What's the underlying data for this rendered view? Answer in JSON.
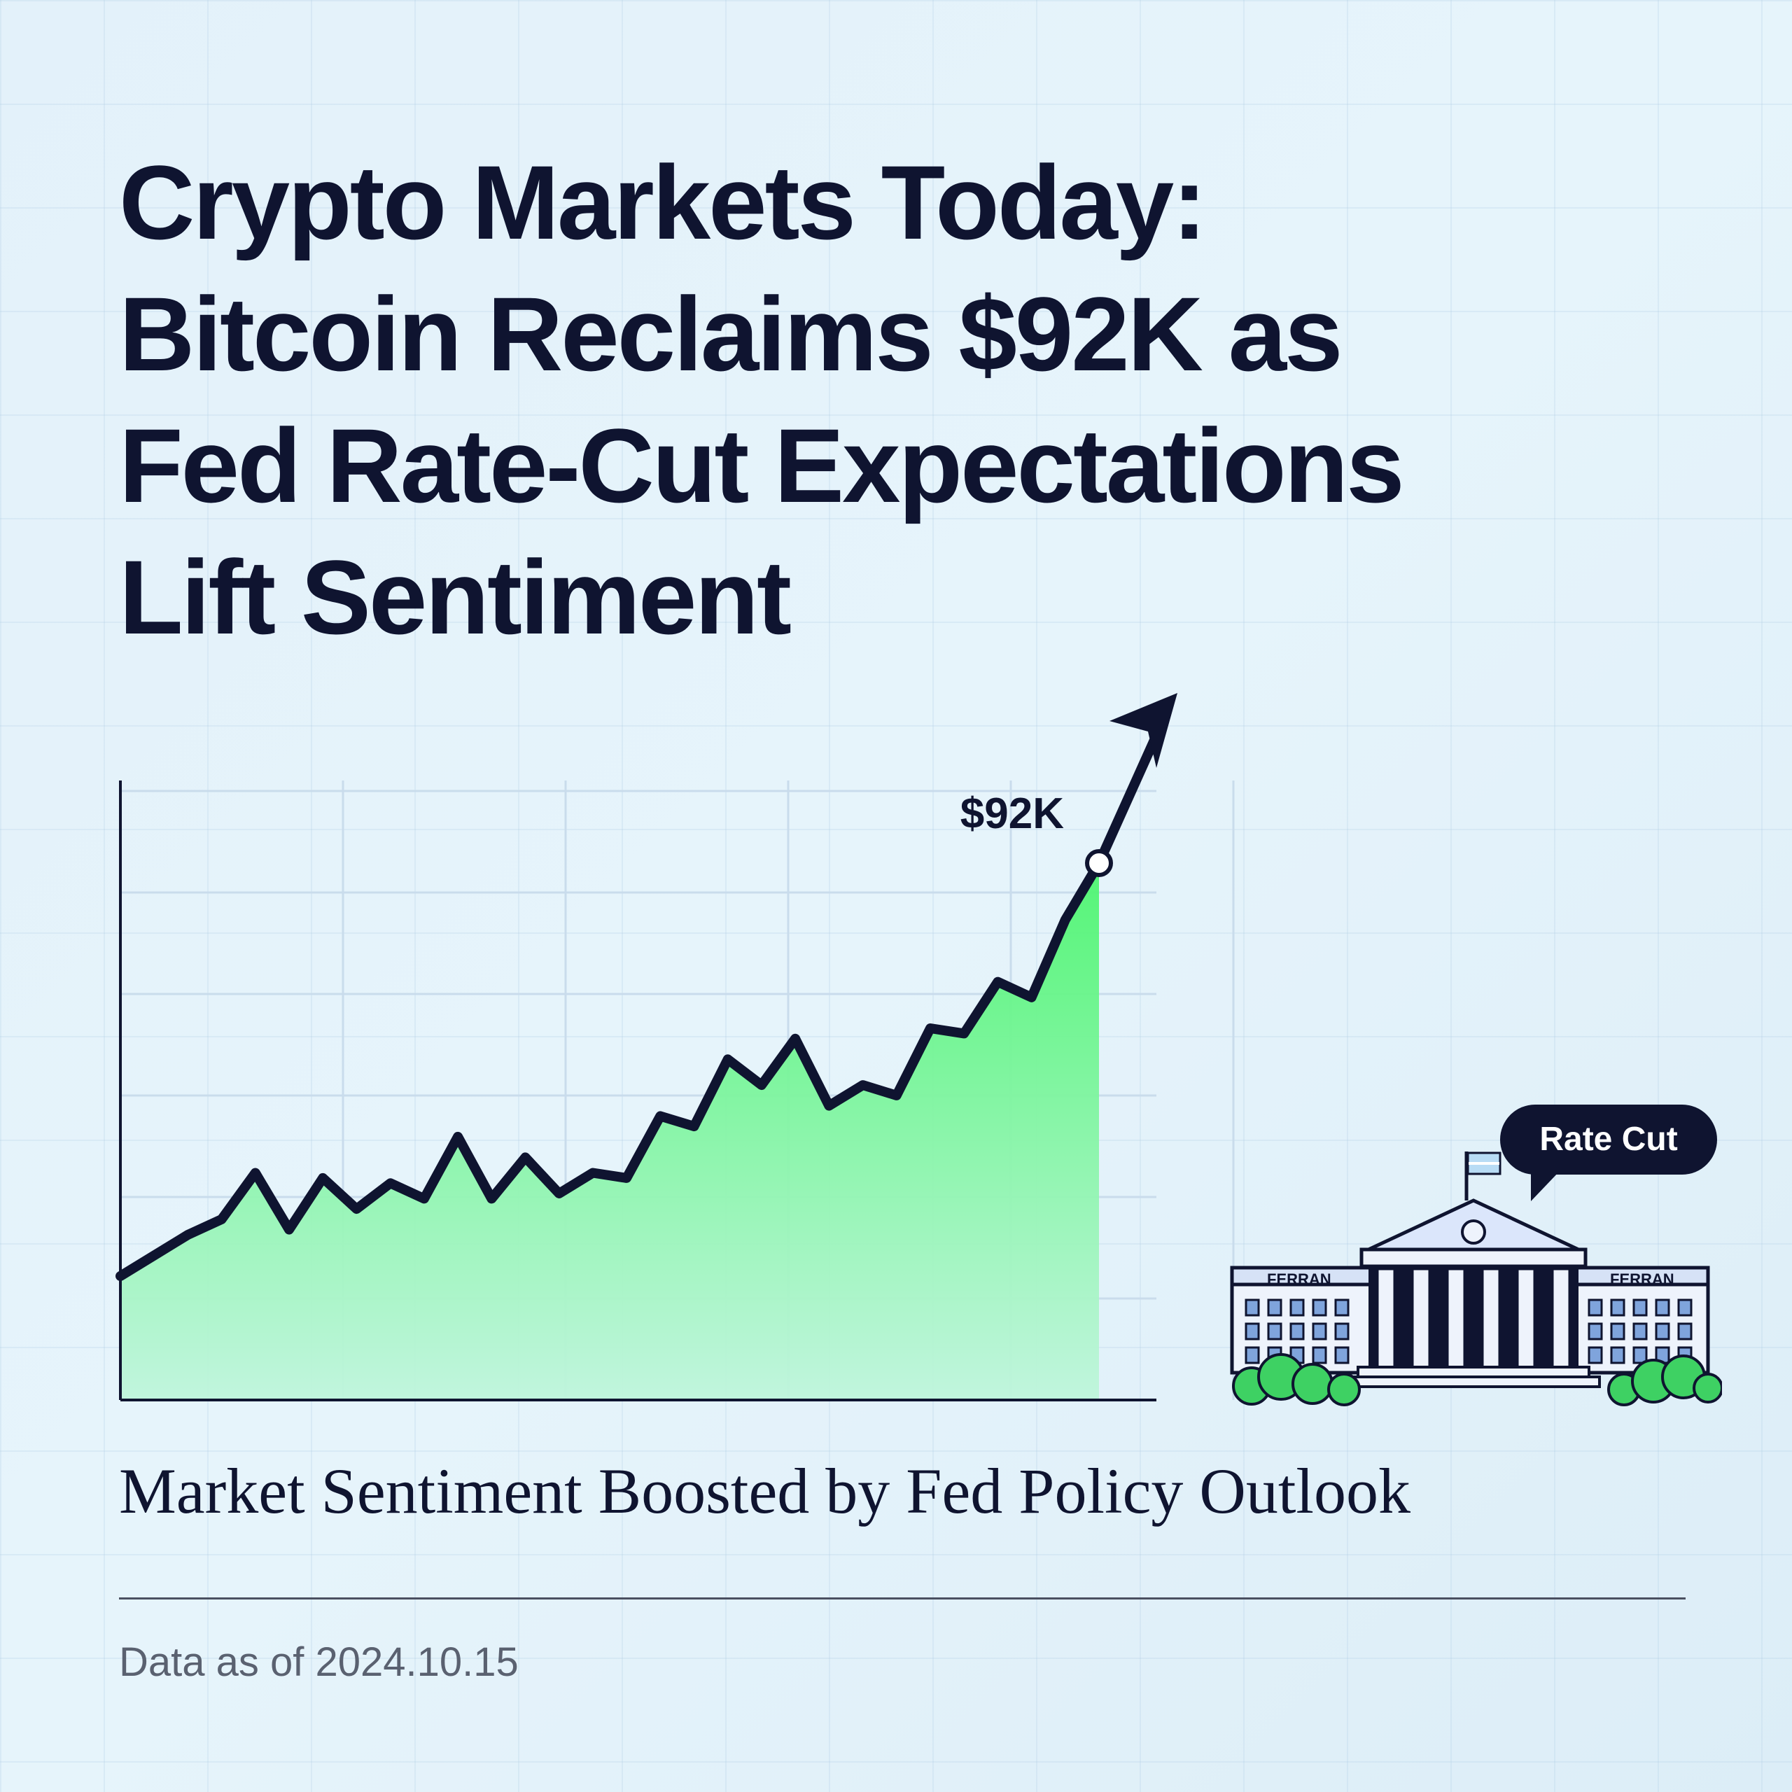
{
  "headline": {
    "lines": [
      "Crypto Markets Today:",
      "Bitcoin Reclaims $92K as",
      "Fed Rate-Cut Expectations",
      "Lift Sentiment"
    ]
  },
  "chart_data": {
    "type": "area",
    "title": "",
    "xlabel": "",
    "ylabel": "",
    "y": [
      52.0,
      54.0,
      56.0,
      57.5,
      62.0,
      56.5,
      61.5,
      58.5,
      61.0,
      59.5,
      65.5,
      59.5,
      63.5,
      60.0,
      62.0,
      61.5,
      67.5,
      66.5,
      73.0,
      70.5,
      75.0,
      68.5,
      70.5,
      69.5,
      76.0,
      75.5,
      80.5,
      79.0,
      86.5,
      92.0
    ],
    "ylim": [
      40,
      100
    ],
    "grid": true,
    "line_color": "#0f1430",
    "fill_color_top": "#4cf56f",
    "fill_color_bottom": "#bff5dc",
    "annotations": [
      {
        "label": "$92K",
        "value": 92.0
      }
    ],
    "trend_arrow": "up"
  },
  "callout": {
    "label": "Rate Cut",
    "icon": "federal-reserve-building-icon",
    "building_sign": "FERRAN"
  },
  "subtitle": "Market Sentiment Boosted by Fed Policy Outlook",
  "footnote": "Data as of 2024.10.15",
  "colors": {
    "text": "#0f1430",
    "background": "#e3f1fa",
    "accent_green": "#4cf56f",
    "muted": "#5a6170"
  }
}
